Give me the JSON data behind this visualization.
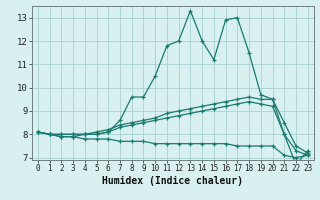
{
  "xlabel": "Humidex (Indice chaleur)",
  "x": [
    0,
    1,
    2,
    3,
    4,
    5,
    6,
    7,
    8,
    9,
    10,
    11,
    12,
    13,
    14,
    15,
    16,
    17,
    18,
    19,
    20,
    21,
    22,
    23
  ],
  "line1": [
    8.1,
    8.0,
    7.9,
    7.9,
    8.0,
    8.0,
    8.1,
    8.6,
    9.6,
    9.6,
    10.5,
    11.8,
    12.0,
    13.3,
    12.0,
    11.2,
    12.9,
    13.0,
    11.5,
    9.7,
    9.5,
    8.0,
    6.7,
    7.3
  ],
  "line2": [
    8.1,
    8.0,
    8.0,
    8.0,
    8.0,
    8.1,
    8.2,
    8.4,
    8.5,
    8.6,
    8.7,
    8.9,
    9.0,
    9.1,
    9.2,
    9.3,
    9.4,
    9.5,
    9.6,
    9.5,
    9.5,
    8.5,
    7.5,
    7.2
  ],
  "line3": [
    8.1,
    8.0,
    8.0,
    8.0,
    8.0,
    8.0,
    8.1,
    8.3,
    8.4,
    8.5,
    8.6,
    8.7,
    8.8,
    8.9,
    9.0,
    9.1,
    9.2,
    9.3,
    9.4,
    9.3,
    9.2,
    8.0,
    7.3,
    7.1
  ],
  "line4": [
    8.1,
    8.0,
    7.9,
    7.9,
    7.8,
    7.8,
    7.8,
    7.7,
    7.7,
    7.7,
    7.6,
    7.6,
    7.6,
    7.6,
    7.6,
    7.6,
    7.6,
    7.5,
    7.5,
    7.5,
    7.5,
    7.1,
    7.0,
    7.1
  ],
  "line_color": "#1a7a6e",
  "bg_color": "#d8f0f0",
  "grid_color": "#a8d0d0",
  "ylim": [
    6.9,
    13.5
  ],
  "xlim": [
    -0.5,
    23.5
  ],
  "xtick_fontsize": 5.5,
  "ytick_fontsize": 6.5,
  "xlabel_fontsize": 7.0
}
